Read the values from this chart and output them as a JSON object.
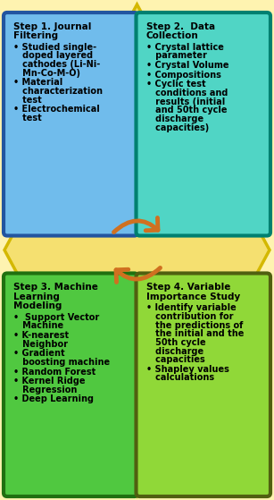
{
  "background_color": "#FEF3B0",
  "diamond_color": "#F5E070",
  "diamond_border": "#D4B800",
  "arrow_color": "#D07020",
  "boxes": {
    "box1": {
      "title": "Step 1. Journal\nFiltering",
      "bullets": [
        "Studied single-\ndoped layered\ncathodes (Li-Ni-\nMn-Co-M-O)",
        "Material\ncharacterization\ntest",
        "Electrochemical\ntest"
      ],
      "bg_color": "#70BCEC",
      "border_color": "#2255A0",
      "pos": "top-left"
    },
    "box2": {
      "title": "Step 2.  Data\nCollection",
      "bullets": [
        "Crystal lattice\nparameter",
        "Crystal Volume",
        "Compositions",
        "Cyclic test\nconditions and\nresults (initial\nand 50th cycle\ndischarge\ncapacities)"
      ],
      "bg_color": "#50D5C5",
      "border_color": "#008070",
      "pos": "top-right"
    },
    "box3": {
      "title": "Step 3. Machine\nLearning\nModeling",
      "bullets": [
        " Support Vector\nMachine",
        "K-nearest\nNeighbor",
        "Gradient\nboosting machine",
        "Random Forest",
        "Kernel Ridge\nRegression",
        "Deep Learning"
      ],
      "bg_color": "#50C840",
      "border_color": "#207010",
      "pos": "bottom-left"
    },
    "box4": {
      "title": "Step 4. Variable\nImportance Study",
      "bullets": [
        "Identify variable\ncontribution for\nthe predictions of\nthe initial and the\n50th cycle\ndischarge\ncapacities",
        "Shapley values\ncalculations"
      ],
      "bg_color": "#90D838",
      "border_color": "#506010",
      "pos": "bottom-right"
    }
  },
  "fig_width": 3.07,
  "fig_height": 5.59,
  "dpi": 100
}
